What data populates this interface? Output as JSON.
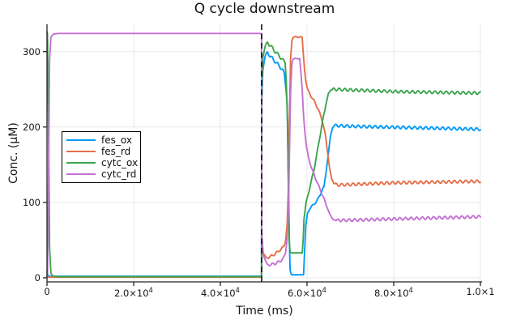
{
  "title": "Q cycle downstream",
  "chart_data": {
    "type": "line",
    "title": "Q cycle downstream",
    "xlabel": "Time (ms)",
    "ylabel": "Conc. (μM)",
    "xlim": [
      0,
      100374
    ],
    "ylim": [
      -5.4,
      336.2
    ],
    "grid": true,
    "legend_position": "left-inside",
    "colors": {
      "grid": "#E8E8E8",
      "spine": "#242424",
      "text": "#151515"
    },
    "x_ticks": [
      {
        "value": 0,
        "base": "0",
        "exp": ""
      },
      {
        "value": 20000,
        "base": "2.0×10",
        "exp": "4"
      },
      {
        "value": 40000,
        "base": "4.0×10",
        "exp": "4"
      },
      {
        "value": 60000,
        "base": "6.0×10",
        "exp": "4"
      },
      {
        "value": 80000,
        "base": "8.0×10",
        "exp": "4"
      },
      {
        "value": 100000,
        "base": "1.0×1",
        "exp": ""
      }
    ],
    "y_ticks": [
      {
        "value": 0,
        "label": "0"
      },
      {
        "value": 100,
        "label": "100"
      },
      {
        "value": 200,
        "label": "200"
      },
      {
        "value": 300,
        "label": "300"
      }
    ],
    "event_line": {
      "x": 49533,
      "color": "#111111",
      "dash": [
        7,
        4.5
      ],
      "width": 1.6
    },
    "series": [
      {
        "name": "fes_ox",
        "color": "#009AFA",
        "points": [
          [
            0,
            8
          ],
          [
            250,
            3
          ],
          [
            600,
            2
          ],
          [
            49500,
            2
          ],
          [
            49560,
            235
          ],
          [
            49800,
            275
          ],
          [
            50300,
            293
          ],
          [
            50900,
            299
          ],
          [
            51500,
            294
          ],
          [
            52300,
            289
          ],
          [
            53100,
            284
          ],
          [
            53900,
            279
          ],
          [
            54400,
            275
          ],
          [
            54770,
            270
          ],
          [
            55100,
            252
          ],
          [
            55400,
            232
          ],
          [
            55650,
            150
          ],
          [
            55900,
            55
          ],
          [
            56100,
            10
          ],
          [
            56400,
            4
          ],
          [
            59200,
            4
          ],
          [
            59400,
            30
          ],
          [
            59700,
            68
          ],
          [
            60100,
            85
          ],
          [
            60600,
            92
          ],
          [
            61500,
            97
          ],
          [
            62400,
            103
          ],
          [
            63000,
            110
          ],
          [
            63900,
            121
          ],
          [
            64400,
            140
          ],
          [
            64900,
            164
          ],
          [
            65400,
            188
          ],
          [
            65900,
            199
          ],
          [
            66400,
            202
          ],
          [
            70000,
            201
          ],
          [
            85000,
            199
          ],
          [
            100000,
            197
          ]
        ],
        "ripples": [
          [
            50300,
            54900,
            2,
            1300
          ],
          [
            59600,
            63800,
            1.2,
            1300
          ],
          [
            66300,
            100000,
            1.8,
            1300
          ]
        ]
      },
      {
        "name": "fes_rd",
        "color": "#E36F47",
        "points": [
          [
            0,
            2
          ],
          [
            400,
            0.8
          ],
          [
            49500,
            0.8
          ],
          [
            49560,
            50
          ],
          [
            49900,
            33
          ],
          [
            50500,
            26
          ],
          [
            51500,
            28
          ],
          [
            52700,
            32
          ],
          [
            53800,
            37
          ],
          [
            54600,
            41
          ],
          [
            55000,
            48
          ],
          [
            55400,
            70
          ],
          [
            55700,
            120
          ],
          [
            55900,
            200
          ],
          [
            56200,
            290
          ],
          [
            56500,
            314
          ],
          [
            56800,
            319
          ],
          [
            57800,
            319.5
          ],
          [
            58880,
            319
          ],
          [
            59100,
            300
          ],
          [
            59400,
            278
          ],
          [
            59700,
            262
          ],
          [
            60100,
            250
          ],
          [
            60700,
            243
          ],
          [
            61700,
            234
          ],
          [
            62700,
            222
          ],
          [
            63600,
            207
          ],
          [
            64200,
            190
          ],
          [
            64700,
            168
          ],
          [
            65200,
            146
          ],
          [
            65700,
            131
          ],
          [
            66200,
            125
          ],
          [
            67000,
            123
          ],
          [
            80000,
            126
          ],
          [
            100000,
            128
          ]
        ],
        "ripples": [
          [
            50100,
            55200,
            1.5,
            1300
          ],
          [
            57000,
            58800,
            0.8,
            1300
          ],
          [
            60000,
            64500,
            1.2,
            1300
          ],
          [
            66400,
            100000,
            1.8,
            1300
          ]
        ]
      },
      {
        "name": "cytc_ox",
        "color": "#3DA44E",
        "points": [
          [
            0,
            326
          ],
          [
            120,
            322
          ],
          [
            350,
            200
          ],
          [
            600,
            40
          ],
          [
            900,
            6
          ],
          [
            1400,
            2
          ],
          [
            2500,
            1.5
          ],
          [
            49500,
            1.5
          ],
          [
            49560,
            250
          ],
          [
            49800,
            292
          ],
          [
            50300,
            306
          ],
          [
            50900,
            312
          ],
          [
            51700,
            307
          ],
          [
            52500,
            301
          ],
          [
            53300,
            296
          ],
          [
            54100,
            291
          ],
          [
            54700,
            287
          ],
          [
            54950,
            285
          ],
          [
            55200,
            262
          ],
          [
            55500,
            205
          ],
          [
            55700,
            115
          ],
          [
            55900,
            48
          ],
          [
            56100,
            34
          ],
          [
            56500,
            33
          ],
          [
            58900,
            33
          ],
          [
            59100,
            50
          ],
          [
            59300,
            78
          ],
          [
            59800,
            100
          ],
          [
            60700,
            121
          ],
          [
            61700,
            146
          ],
          [
            62600,
            175
          ],
          [
            63500,
            205
          ],
          [
            64300,
            228
          ],
          [
            64900,
            244
          ],
          [
            65500,
            249
          ],
          [
            66200,
            250
          ],
          [
            80000,
            247
          ],
          [
            100000,
            245
          ]
        ],
        "ripples": [
          [
            50300,
            54900,
            2,
            1300
          ],
          [
            59500,
            64200,
            1.2,
            1300
          ],
          [
            65800,
            100000,
            1.8,
            1300
          ]
        ]
      },
      {
        "name": "cytc_rd",
        "color": "#C371D2",
        "points": [
          [
            0,
            0
          ],
          [
            120,
            6
          ],
          [
            350,
            130
          ],
          [
            600,
            288
          ],
          [
            900,
            319
          ],
          [
            1400,
            323
          ],
          [
            2500,
            324
          ],
          [
            49500,
            324
          ],
          [
            49560,
            60
          ],
          [
            49900,
            30
          ],
          [
            50800,
            17
          ],
          [
            52000,
            18
          ],
          [
            52700,
            19
          ],
          [
            53800,
            22
          ],
          [
            54600,
            26
          ],
          [
            55000,
            32
          ],
          [
            55400,
            50
          ],
          [
            55700,
            90
          ],
          [
            55900,
            150
          ],
          [
            56200,
            245
          ],
          [
            56500,
            283
          ],
          [
            56800,
            290
          ],
          [
            57800,
            291
          ],
          [
            58300,
            291
          ],
          [
            58600,
            272
          ],
          [
            58900,
            248
          ],
          [
            59200,
            215
          ],
          [
            59500,
            193
          ],
          [
            59900,
            172
          ],
          [
            60400,
            158
          ],
          [
            61200,
            143
          ],
          [
            62100,
            130
          ],
          [
            63100,
            116
          ],
          [
            63900,
            105
          ],
          [
            64700,
            92
          ],
          [
            65300,
            84
          ],
          [
            65900,
            78
          ],
          [
            66600,
            76
          ],
          [
            80000,
            78
          ],
          [
            100000,
            81
          ]
        ],
        "ripples": [
          [
            50400,
            55200,
            1.5,
            1300
          ],
          [
            57000,
            58200,
            0.8,
            1300
          ],
          [
            59800,
            64500,
            1.2,
            1300
          ],
          [
            66800,
            100000,
            1.8,
            1300
          ]
        ]
      }
    ]
  }
}
